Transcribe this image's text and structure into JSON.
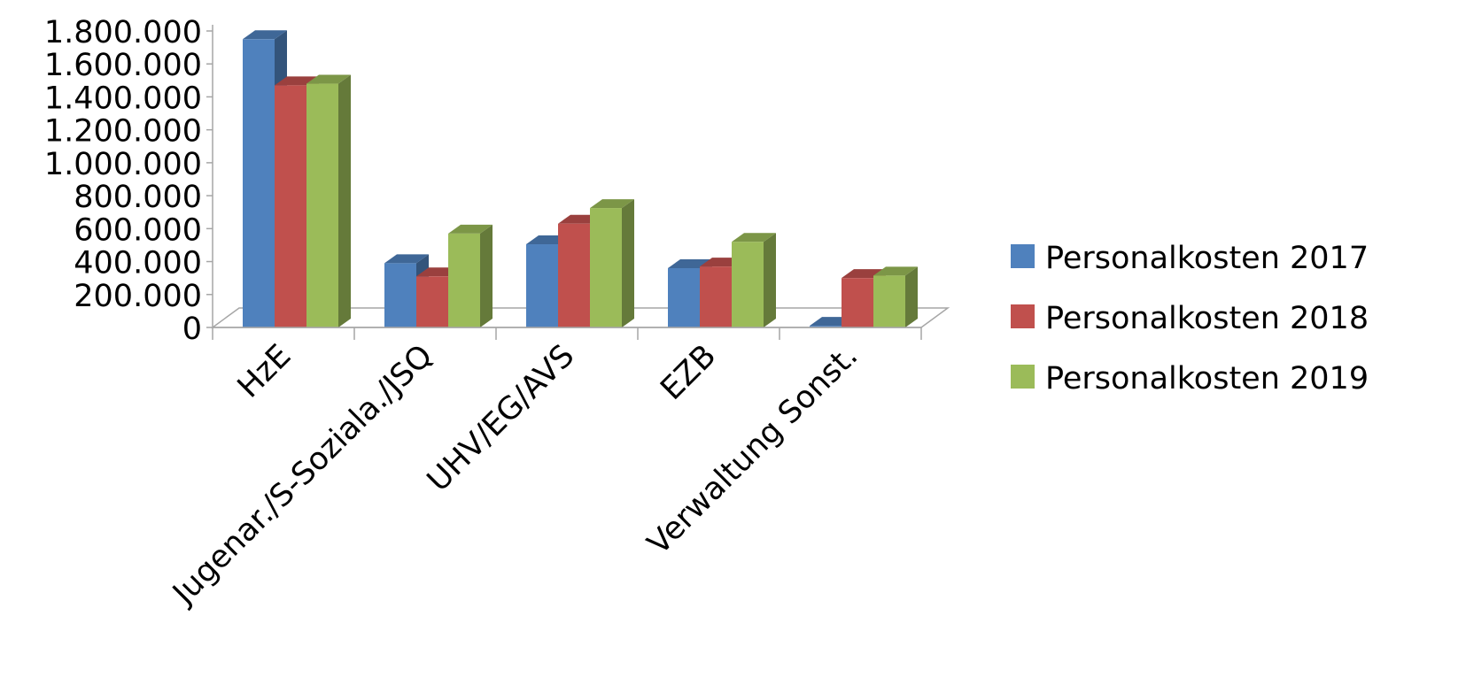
{
  "chart_data": {
    "type": "bar",
    "style": "3d-clustered-column",
    "categories": [
      "HzE",
      "Jugenar./S-Soziala./JSQ",
      "UHV/EG/AVS",
      "EZB",
      "Verwaltung Sonst."
    ],
    "series": [
      {
        "name": "Personalkosten 2017",
        "color": "#4F81BD",
        "values": [
          1750000,
          390000,
          505000,
          360000,
          10000
        ]
      },
      {
        "name": "Personalkosten 2018",
        "color": "#C0504D",
        "values": [
          1470000,
          310000,
          630000,
          370000,
          300000
        ]
      },
      {
        "name": "Personalkosten 2019",
        "color": "#9BBB59",
        "values": [
          1480000,
          570000,
          725000,
          520000,
          315000
        ]
      }
    ],
    "y_ticks": [
      "0",
      "200.000",
      "400.000",
      "600.000",
      "800.000",
      "1.000.000",
      "1.200.000",
      "1.400.000",
      "1.600.000",
      "1.800.000"
    ],
    "ylim": [
      0,
      1800000
    ],
    "ystep": 200000,
    "grid": false,
    "legend_position": "right"
  }
}
